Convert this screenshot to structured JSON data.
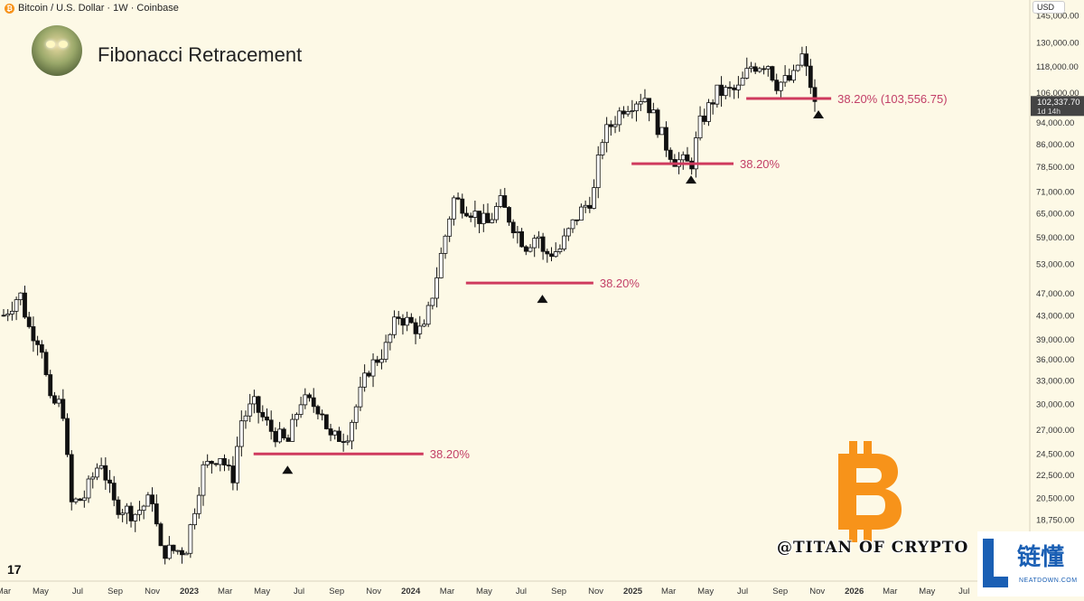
{
  "header": {
    "symbol_icon": "bitcoin-icon",
    "symbol_label": "Bitcoin / U.S. Dollar · 1W · Coinbase",
    "currency": "USD"
  },
  "title": "Fibonacci Retracement",
  "watermark": "@TITAN OF CRYPTO",
  "site_logo": {
    "text": "链懂",
    "url": "NEATDOWN.COM"
  },
  "tv_logo": "17",
  "colors": {
    "background": "#fdf9e6",
    "level_line": "#cf3a5e",
    "level_text": "#c23f67",
    "bitcoin_orange": "#f7931a"
  },
  "chart_data": {
    "type": "candlestick",
    "y_scale": "log",
    "ylim": [
      17500,
      150000
    ],
    "y_ticks": [
      145000,
      130000,
      118000,
      106000,
      94000,
      86000,
      78500,
      71000,
      65000,
      59000,
      53000,
      47000,
      43000,
      39000,
      36000,
      33000,
      30000,
      27000,
      24500,
      22500,
      20500,
      18750
    ],
    "y_tick_labels": [
      "145,000.00",
      "130,000.00",
      "118,000.00",
      "106,000.00",
      "94,000.00",
      "86,000.00",
      "78,500.00",
      "71,000.00",
      "65,000.00",
      "59,000.00",
      "53,000.00",
      "47,000.00",
      "43,000.00",
      "39,000.00",
      "36,000.00",
      "33,000.00",
      "30,000.00",
      "27,000.00",
      "24,500.00",
      "22,500.00",
      "20,500.00",
      "18,750.00"
    ],
    "x_range": [
      "2022-03-01",
      "2026-07-20"
    ],
    "x_ticks": [
      {
        "date": "2022-03-01",
        "label": "Mar",
        "bold": false
      },
      {
        "date": "2022-05-01",
        "label": "May",
        "bold": false
      },
      {
        "date": "2022-07-01",
        "label": "Jul",
        "bold": false
      },
      {
        "date": "2022-09-01",
        "label": "Sep",
        "bold": false
      },
      {
        "date": "2022-11-01",
        "label": "Nov",
        "bold": false
      },
      {
        "date": "2023-01-01",
        "label": "2023",
        "bold": true
      },
      {
        "date": "2023-03-01",
        "label": "Mar",
        "bold": false
      },
      {
        "date": "2023-05-01",
        "label": "May",
        "bold": false
      },
      {
        "date": "2023-07-01",
        "label": "Jul",
        "bold": false
      },
      {
        "date": "2023-09-01",
        "label": "Sep",
        "bold": false
      },
      {
        "date": "2023-11-01",
        "label": "Nov",
        "bold": false
      },
      {
        "date": "2024-01-01",
        "label": "2024",
        "bold": true
      },
      {
        "date": "2024-03-01",
        "label": "Mar",
        "bold": false
      },
      {
        "date": "2024-05-01",
        "label": "May",
        "bold": false
      },
      {
        "date": "2024-07-01",
        "label": "Jul",
        "bold": false
      },
      {
        "date": "2024-09-01",
        "label": "Sep",
        "bold": false
      },
      {
        "date": "2024-11-01",
        "label": "Nov",
        "bold": false
      },
      {
        "date": "2025-01-01",
        "label": "2025",
        "bold": true
      },
      {
        "date": "2025-03-01",
        "label": "Mar",
        "bold": false
      },
      {
        "date": "2025-05-01",
        "label": "May",
        "bold": false
      },
      {
        "date": "2025-07-01",
        "label": "Jul",
        "bold": false
      },
      {
        "date": "2025-09-01",
        "label": "Sep",
        "bold": false
      },
      {
        "date": "2025-11-01",
        "label": "Nov",
        "bold": false
      },
      {
        "date": "2026-01-01",
        "label": "2026",
        "bold": true
      },
      {
        "date": "2026-03-01",
        "label": "Mar",
        "bold": false
      },
      {
        "date": "2026-05-01",
        "label": "May",
        "bold": false
      },
      {
        "date": "2026-07-01",
        "label": "Jul",
        "bold": false
      }
    ],
    "price_path": [
      [
        "2022-03-01",
        43000
      ],
      [
        "2022-03-28",
        47000
      ],
      [
        "2022-04-11",
        41000
      ],
      [
        "2022-05-02",
        38500
      ],
      [
        "2022-05-16",
        30000
      ],
      [
        "2022-06-06",
        30000
      ],
      [
        "2022-06-20",
        20000
      ],
      [
        "2022-07-11",
        20500
      ],
      [
        "2022-08-08",
        24000
      ],
      [
        "2022-08-29",
        20000
      ],
      [
        "2022-10-03",
        19200
      ],
      [
        "2022-11-01",
        20500
      ],
      [
        "2022-11-14",
        16500
      ],
      [
        "2022-12-26",
        16600
      ],
      [
        "2023-01-23",
        23000
      ],
      [
        "2023-02-20",
        24500
      ],
      [
        "2023-03-13",
        22000
      ],
      [
        "2023-03-27",
        28000
      ],
      [
        "2023-04-17",
        30000
      ],
      [
        "2023-05-15",
        27000
      ],
      [
        "2023-06-12",
        25500
      ],
      [
        "2023-07-03",
        30500
      ],
      [
        "2023-08-07",
        29500
      ],
      [
        "2023-08-21",
        26000
      ],
      [
        "2023-09-18",
        26500
      ],
      [
        "2023-10-23",
        34500
      ],
      [
        "2023-11-20",
        37500
      ],
      [
        "2023-12-11",
        43000
      ],
      [
        "2024-01-22",
        40000
      ],
      [
        "2024-02-12",
        50000
      ],
      [
        "2024-03-11",
        69000
      ],
      [
        "2024-04-08",
        66000
      ],
      [
        "2024-05-06",
        62000
      ],
      [
        "2024-05-27",
        68000
      ],
      [
        "2024-07-08",
        57000
      ],
      [
        "2024-07-29",
        60000
      ],
      [
        "2024-08-05",
        55000
      ],
      [
        "2024-09-02",
        56000
      ],
      [
        "2024-09-30",
        64000
      ],
      [
        "2024-10-28",
        70000
      ],
      [
        "2024-11-11",
        88000
      ],
      [
        "2024-12-16",
        100000
      ],
      [
        "2025-01-20",
        105000
      ],
      [
        "2025-02-24",
        86000
      ],
      [
        "2025-03-10",
        81000
      ],
      [
        "2025-04-07",
        79000
      ],
      [
        "2025-04-21",
        93000
      ],
      [
        "2025-05-19",
        106000
      ],
      [
        "2025-06-23",
        107000
      ],
      [
        "2025-07-14",
        118000
      ],
      [
        "2025-08-11",
        120000
      ],
      [
        "2025-08-25",
        110000
      ],
      [
        "2025-09-22",
        112000
      ],
      [
        "2025-10-06",
        124000
      ],
      [
        "2025-10-20",
        110000
      ],
      [
        "2025-11-03",
        102337.7
      ]
    ],
    "last_price": {
      "value": 102337.7,
      "label": "102,337.70",
      "countdown": "1d 14h"
    },
    "fib_levels": [
      {
        "label": "38.20%",
        "price": 24500,
        "start": "2023-04-17",
        "end": "2024-01-22",
        "marker_date": "2023-06-12"
      },
      {
        "label": "38.20%",
        "price": 49000,
        "start": "2024-04-01",
        "end": "2024-10-28",
        "marker_date": "2024-08-05"
      },
      {
        "label": "38.20%",
        "price": 79500,
        "start": "2024-12-30",
        "end": "2025-06-16",
        "marker_date": "2025-04-07"
      },
      {
        "label": "38.20% (103,556.75)",
        "price": 103556.75,
        "start": "2025-07-07",
        "end": "2025-11-24",
        "marker_date": "2025-11-03"
      }
    ]
  }
}
